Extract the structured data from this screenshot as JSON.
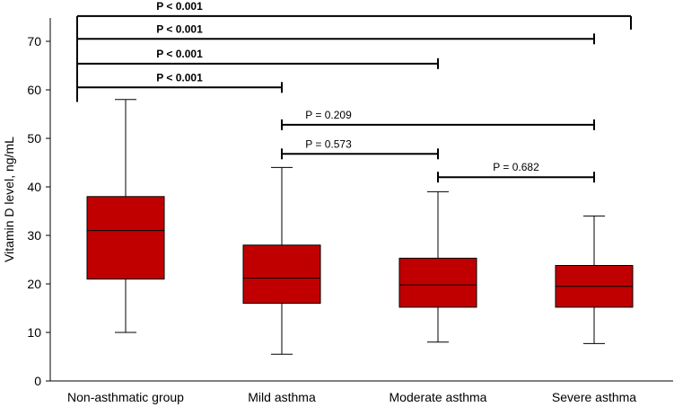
{
  "chart_data": {
    "type": "boxplot",
    "title": "",
    "xlabel": "",
    "ylabel": "Vitamin D level, ng/mL",
    "ylim": [
      0,
      75
    ],
    "yticks": [
      0,
      10,
      20,
      30,
      40,
      50,
      60,
      70
    ],
    "categories": [
      "Non-asthmatic group",
      "Mild asthma",
      "Moderate asthma",
      "Severe asthma"
    ],
    "boxes": [
      {
        "category": "Non-asthmatic group",
        "min": 10,
        "q1": 21,
        "median": 31,
        "q3": 38,
        "max": 58
      },
      {
        "category": "Mild asthma",
        "min": 5.5,
        "q1": 16,
        "median": 21.2,
        "q3": 28,
        "max": 44
      },
      {
        "category": "Moderate asthma",
        "min": 8,
        "q1": 15.2,
        "median": 19.8,
        "q3": 25.3,
        "max": 39
      },
      {
        "category": "Severe asthma",
        "min": 7.7,
        "q1": 15.2,
        "median": 19.5,
        "q3": 23.8,
        "max": 34
      }
    ],
    "box_color": "#c00000",
    "comparisons": [
      {
        "from": 0,
        "to": 3,
        "label": "P < 0.001",
        "bold": true,
        "y": 75.2
      },
      {
        "from": 0,
        "to": 3,
        "label": "P < 0.001",
        "bold": true,
        "y": 70.5
      },
      {
        "from": 0,
        "to": 2,
        "label": "P < 0.001",
        "bold": true,
        "y": 65.4
      },
      {
        "from": 0,
        "to": 1,
        "label": "P < 0.001",
        "bold": true,
        "y": 60.5
      },
      {
        "from": 1,
        "to": 3,
        "label": "P = 0.209",
        "bold": false,
        "y": 52.8
      },
      {
        "from": 1,
        "to": 2,
        "label": "P = 0.573",
        "bold": false,
        "y": 46.8
      },
      {
        "from": 2,
        "to": 3,
        "label": "P = 0.682",
        "bold": false,
        "y": 42.0
      }
    ]
  }
}
